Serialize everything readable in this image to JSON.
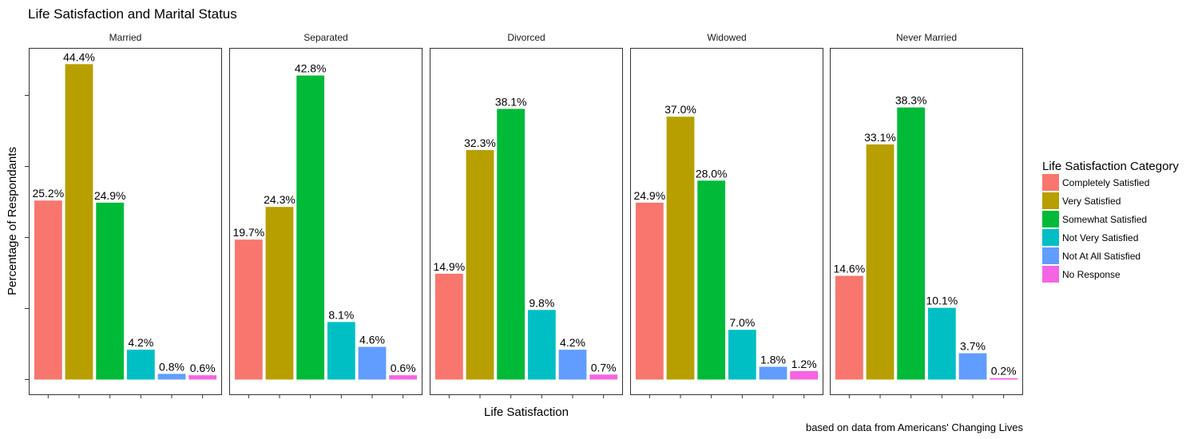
{
  "chart_data": {
    "type": "bar",
    "title": "Life Satisfaction and Marital Status",
    "xlabel": "Life Satisfaction",
    "ylabel": "Percentage of Respondants",
    "caption": "based on data from Americans' Changing Lives",
    "legend_title": "Life Satisfaction Category",
    "legend_position": "right",
    "grid": false,
    "ylim": [
      0,
      46
    ],
    "categories": [
      "Completely Satisfied",
      "Very Satisfied",
      "Somewhat Satisfied",
      "Not Very Satisfied",
      "Not At All Satisfied",
      "No Response"
    ],
    "colors": [
      "#F8766D",
      "#B79F00",
      "#00BA38",
      "#00BFC4",
      "#619CFF",
      "#F564E3"
    ],
    "panels": [
      {
        "name": "Married",
        "values": [
          25.2,
          44.4,
          24.9,
          4.2,
          0.8,
          0.6
        ],
        "labels": [
          "25.2%",
          "44.4%",
          "24.9%",
          "4.2%",
          "0.8%",
          "0.6%"
        ]
      },
      {
        "name": "Separated",
        "values": [
          19.7,
          24.3,
          42.8,
          8.1,
          4.6,
          0.6
        ],
        "labels": [
          "19.7%",
          "24.3%",
          "42.8%",
          "8.1%",
          "4.6%",
          "0.6%"
        ]
      },
      {
        "name": "Divorced",
        "values": [
          14.9,
          32.3,
          38.1,
          9.8,
          4.2,
          0.7
        ],
        "labels": [
          "14.9%",
          "32.3%",
          "38.1%",
          "9.8%",
          "4.2%",
          "0.7%"
        ]
      },
      {
        "name": "Widowed",
        "values": [
          24.9,
          37.0,
          28.0,
          7.0,
          1.8,
          1.2
        ],
        "labels": [
          "24.9%",
          "37.0%",
          "28.0%",
          "7.0%",
          "1.8%",
          "1.2%"
        ]
      },
      {
        "name": "Never Married",
        "values": [
          14.6,
          33.1,
          38.3,
          10.1,
          3.7,
          0.2
        ],
        "labels": [
          "14.6%",
          "33.1%",
          "38.3%",
          "10.1%",
          "3.7%",
          "0.2%"
        ]
      }
    ]
  }
}
